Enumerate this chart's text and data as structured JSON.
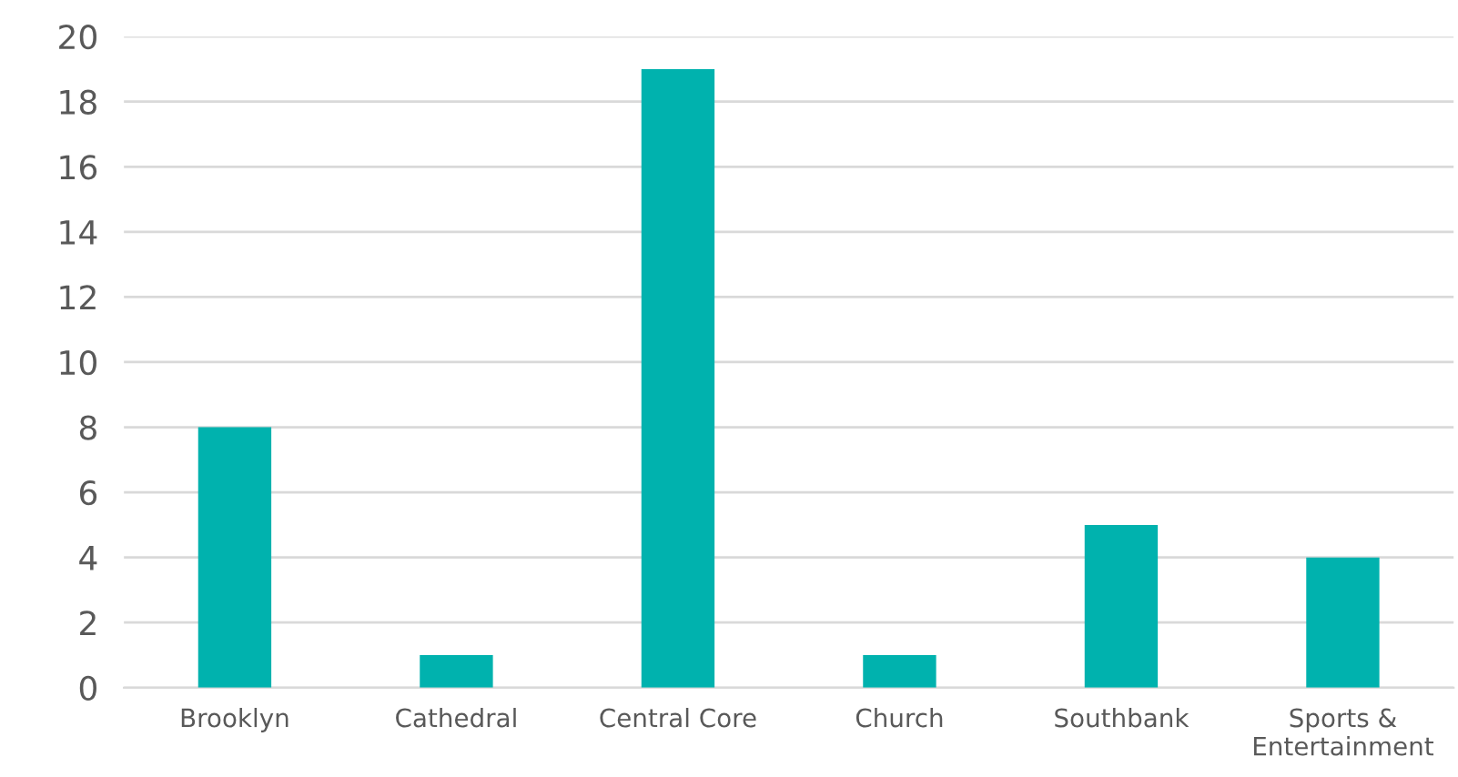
{
  "chart_data": {
    "type": "bar",
    "categories": [
      "Brooklyn",
      "Cathedral",
      "Central Core",
      "Church",
      "Southbank",
      "Sports &\nEntertainment"
    ],
    "values": [
      8,
      1,
      19,
      1,
      5,
      4
    ],
    "color": "#00b2ae",
    "ylim": [
      0,
      20
    ],
    "yticks": [
      0,
      2,
      4,
      6,
      8,
      10,
      12,
      14,
      16,
      18,
      20
    ],
    "grid": "y",
    "legend": false
  }
}
